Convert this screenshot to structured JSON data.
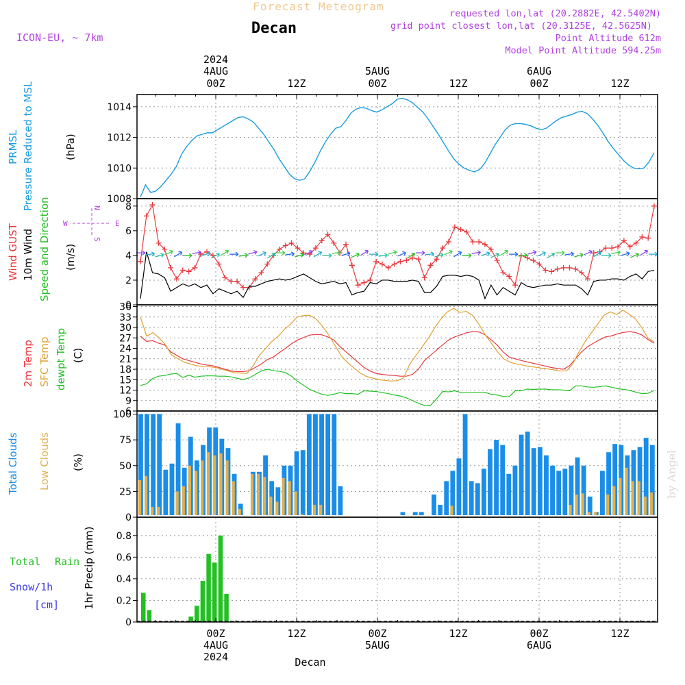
{
  "header": {
    "title": "Forecast Meteogram",
    "place": "Decan",
    "model": "ICON-EU, ~ 7km",
    "requested": "requested lon,lat (20.2882E, 42.5402N)",
    "grid": "grid point closest lon,lat (20.3125E, 42.5625N)",
    "altitude": "Point Altitude 612m",
    "model_altitude": "Model Point Altitude 594.25m",
    "footer": "Decan",
    "watermark": "by Angel"
  },
  "top_time_axis": {
    "labels": [
      "2024",
      "4AUG",
      "00Z",
      "12Z",
      "5AUG",
      "00Z",
      "12Z",
      "6AUG",
      "00Z",
      "12Z"
    ]
  },
  "bottom_time_axis": {
    "labels": [
      "00Z",
      "4AUG",
      "2024",
      "12Z",
      "00Z",
      "5AUG",
      "12Z",
      "00Z",
      "6AUG",
      "12Z"
    ]
  },
  "panels": {
    "pressure": {
      "label1": "PRMSL",
      "label2": "Pressure Reduced to MSL",
      "unit": "(hPa)"
    },
    "wind": {
      "label1": "Wind GUST",
      "label2": "10m Wind",
      "label3": "Speed and Direction",
      "unit": "(m/s)",
      "compass_n": "N",
      "compass_s": "S",
      "compass_w": "W",
      "compass_e": "E"
    },
    "temp": {
      "label1": "2m Temp",
      "label2": "SFC Temp",
      "label3": "dewpt Temp",
      "unit": "(C)"
    },
    "clouds": {
      "label1": "Total Clouds",
      "label2": "Low Clouds",
      "unit": "(%)"
    },
    "precip": {
      "label1": "Total",
      "label2": "Rain",
      "label3": "Snow/1h",
      "label4": "[cm]",
      "unit": "1hr Precip (mm)"
    }
  },
  "colors": {
    "pressure": "#1a9be0",
    "gust": "#e8383d",
    "wind": "#000000",
    "t2m": "#e8383d",
    "sfc": "#e0a030",
    "dewpt": "#22c022",
    "total_cloud": "#1a8de8",
    "low_cloud": "#e0b050",
    "rain": "#22c022",
    "title": "#f0c890",
    "meta": "#b040e0",
    "snow": "#3a3ae8"
  },
  "chart_data": [
    {
      "type": "line",
      "ylabel": "(hPa)",
      "ylim": [
        1008,
        1014.8
      ],
      "yticks": [
        "1008",
        "1010",
        "1012",
        "1014"
      ],
      "x_hours": [
        -21,
        -20,
        -19,
        -18,
        -17,
        -16,
        -15,
        -14,
        -13,
        -12,
        -11,
        -10,
        -9,
        -8,
        -7,
        -6,
        -5,
        -4,
        -3,
        -2,
        -1,
        0,
        1,
        2,
        3,
        4,
        5,
        6,
        7,
        8,
        9,
        10,
        11,
        12,
        13,
        14,
        15,
        16,
        17,
        18,
        19,
        20,
        21,
        22,
        23,
        24,
        25,
        26,
        27,
        28,
        29,
        30,
        31,
        32,
        33,
        34,
        35,
        36,
        37,
        38,
        39,
        40,
        41,
        42,
        43,
        44,
        45,
        46,
        47,
        48,
        49,
        50,
        51,
        52,
        53,
        54,
        55,
        56,
        57,
        58,
        59,
        60,
        61,
        62,
        63,
        64,
        65,
        66,
        67,
        68,
        69,
        70,
        71,
        72,
        73,
        74,
        75,
        76,
        77,
        78,
        79,
        80,
        81,
        82,
        83,
        84,
        85,
        86,
        87,
        88,
        89,
        90,
        91,
        92,
        93,
        94,
        95,
        96,
        97,
        98,
        99,
        100,
        101,
        102,
        103,
        104,
        105,
        106,
        107,
        108,
        109,
        110,
        111,
        112,
        113,
        114,
        115,
        116
      ],
      "series": [
        {
          "values": [
            1008.1,
            1008.9,
            1008.4,
            1008.5,
            1008.8,
            1009.2,
            1009.6,
            1010.1,
            1010.9,
            1011.4,
            1011.8,
            1012.1,
            1012.2,
            1012.3,
            1012.3,
            1012.5,
            1012.7,
            1012.9,
            1013.1,
            1013.3,
            1013.35,
            1013.2,
            1013.0,
            1012.6,
            1012.2,
            1011.7,
            1011.2,
            1010.6,
            1010.1,
            1009.6,
            1009.3,
            1009.2,
            1009.3,
            1009.8,
            1010.4,
            1011.1,
            1011.7,
            1012.2,
            1012.6,
            1012.7,
            1013.1,
            1013.6,
            1013.85,
            1013.95,
            1013.9,
            1013.75,
            1013.65,
            1013.8,
            1014.0,
            1014.2,
            1014.5,
            1014.55,
            1014.45,
            1014.25,
            1013.95,
            1013.65,
            1013.2,
            1012.7,
            1012.2,
            1011.65,
            1011.1,
            1010.6,
            1010.25,
            1010.0,
            1009.85,
            1009.75,
            1009.9,
            1010.3,
            1010.9,
            1011.5,
            1012.0,
            1012.5,
            1012.8,
            1012.9,
            1012.9,
            1012.85,
            1012.75,
            1012.6,
            1012.5,
            1012.6,
            1012.85,
            1013.1,
            1013.3,
            1013.4,
            1013.5,
            1013.65,
            1013.7,
            1013.55,
            1013.2,
            1012.8,
            1012.3,
            1011.75,
            1011.3,
            1010.9,
            1010.5,
            1010.2,
            1010.0,
            1009.95,
            1010.0,
            1010.4,
            1011.0
          ]
        }
      ]
    },
    {
      "type": "line",
      "ylabel": "(m/s)",
      "ylim": [
        0,
        8.6
      ],
      "yticks": [
        "0",
        "2",
        "4",
        "6",
        "8"
      ],
      "series": [
        {
          "name": "Wind GUST",
          "values": [
            3.5,
            7.2,
            8.1,
            5.0,
            4.5,
            3.0,
            2.1,
            2.8,
            2.7,
            3.0,
            4.1,
            4.3,
            4.0,
            3.3,
            2.2,
            1.9,
            1.9,
            1.4,
            1.4,
            2.1,
            2.6,
            3.3,
            4.0,
            4.5,
            4.8,
            5.0,
            4.6,
            4.2,
            4.1,
            4.6,
            5.2,
            5.7,
            5.0,
            4.2,
            4.9,
            3.2,
            1.6,
            1.8,
            2.0,
            3.5,
            3.3,
            3.0,
            3.3,
            3.5,
            3.6,
            3.8,
            3.7,
            2.2,
            3.2,
            3.7,
            4.6,
            5.1,
            6.3,
            6.1,
            5.9,
            5.1,
            5.1,
            4.9,
            4.5,
            3.6,
            2.6,
            2.3,
            1.6,
            4.0,
            3.8,
            3.6,
            3.3,
            2.8,
            2.7,
            2.9,
            3.0,
            3.0,
            2.9,
            2.6,
            2.1,
            4.2,
            4.3,
            4.6,
            4.6,
            4.7,
            5.2,
            4.7,
            5.0,
            5.5,
            5.4,
            8.0
          ]
        },
        {
          "name": "10m Wind",
          "values": [
            0.5,
            4.3,
            2.6,
            2.5,
            2.2,
            1.1,
            1.4,
            1.7,
            1.5,
            1.7,
            1.4,
            1.6,
            0.9,
            1.3,
            1.1,
            0.9,
            1.1,
            0.6,
            1.5,
            1.5,
            1.7,
            1.9,
            2.0,
            2.1,
            2.0,
            2.1,
            2.3,
            2.5,
            2.2,
            1.9,
            1.7,
            1.8,
            1.9,
            1.7,
            1.8,
            0.8,
            1.0,
            1.1,
            1.8,
            1.7,
            2.0,
            2.0,
            1.9,
            1.9,
            1.9,
            2.0,
            1.9,
            1.0,
            1.0,
            1.5,
            2.3,
            2.4,
            2.4,
            2.3,
            2.4,
            2.3,
            2.0,
            0.5,
            1.6,
            0.8,
            1.4,
            1.1,
            0.8,
            1.8,
            1.5,
            1.4,
            1.5,
            1.6,
            1.6,
            1.7,
            1.6,
            1.6,
            1.6,
            1.3,
            0.8,
            1.9,
            2.0,
            2.0,
            2.1,
            2.1,
            2.0,
            2.3,
            2.5,
            2.1,
            2.7,
            2.8
          ]
        }
      ]
    },
    {
      "type": "line",
      "ylabel": "(C)",
      "ylim": [
        6,
        36.5
      ],
      "yticks": [
        "6",
        "9",
        "12",
        "15",
        "18",
        "21",
        "24",
        "27",
        "30",
        "33",
        "36"
      ],
      "series": [
        {
          "name": "2m Temp",
          "values": [
            27.5,
            26.0,
            26.2,
            25.5,
            25.0,
            23.0,
            22.0,
            21.0,
            20.5,
            20.0,
            19.5,
            19.2,
            19.0,
            18.5,
            18.0,
            17.5,
            17.3,
            17.3,
            17.6,
            18.5,
            19.5,
            20.8,
            21.5,
            22.8,
            24.0,
            25.3,
            26.4,
            27.1,
            27.8,
            28.0,
            27.9,
            27.3,
            26.4,
            24.5,
            23.0,
            21.5,
            20.0,
            18.5,
            17.5,
            16.8,
            16.5,
            16.3,
            16.2,
            16.0,
            16.0,
            16.5,
            18.0,
            20.5,
            22.0,
            23.5,
            25.0,
            26.4,
            27.3,
            27.9,
            28.5,
            28.8,
            28.7,
            27.9,
            26.5,
            25.0,
            23.0,
            21.5,
            21.0,
            20.5,
            20.1,
            19.7,
            19.3,
            18.9,
            18.5,
            18.2,
            18.0,
            19.0,
            21.0,
            23.0,
            24.5,
            25.5,
            26.5,
            27.3,
            27.6,
            28.2,
            28.6,
            28.8,
            28.5,
            27.8,
            26.5,
            25.5
          ]
        },
        {
          "name": "SFC Temp",
          "values": [
            33.0,
            27.5,
            28.5,
            27.0,
            25.0,
            22.0,
            21.0,
            20.0,
            19.5,
            19.0,
            18.8,
            18.7,
            18.5,
            18.0,
            17.5,
            17.0,
            16.9,
            16.8,
            19.0,
            22.0,
            24.0,
            26.0,
            27.5,
            29.5,
            31.0,
            33.0,
            33.4,
            33.5,
            32.5,
            30.5,
            28.0,
            25.0,
            22.0,
            20.0,
            18.5,
            17.0,
            16.0,
            15.5,
            15.0,
            14.8,
            14.6,
            14.7,
            15.5,
            19.5,
            22.0,
            24.5,
            27.0,
            30.0,
            32.5,
            34.5,
            35.5,
            34.3,
            34.6,
            33.5,
            31.0,
            28.0,
            25.5,
            23.0,
            21.0,
            20.0,
            19.5,
            19.2,
            18.8,
            18.6,
            18.3,
            18.1,
            17.8,
            17.5,
            17.5,
            19.5,
            23.0,
            26.0,
            28.5,
            31.0,
            33.5,
            34.5,
            33.7,
            35.0,
            33.8,
            32.5,
            30.0,
            27.0,
            25.8
          ]
        },
        {
          "name": "dewpt Temp",
          "values": [
            13.3,
            13.8,
            15.3,
            16.0,
            16.2,
            16.6,
            16.8,
            15.6,
            16.3,
            15.7,
            16.0,
            16.1,
            16.1,
            16.0,
            16.0,
            15.8,
            15.4,
            15.0,
            15.5,
            16.5,
            17.5,
            18.0,
            17.6,
            17.4,
            17.0,
            16.0,
            14.5,
            13.4,
            12.2,
            11.5,
            10.8,
            10.5,
            10.8,
            11.3,
            11.0,
            11.0,
            10.8,
            11.8,
            11.7,
            11.6,
            11.3,
            11.0,
            10.6,
            10.3,
            9.8,
            9.0,
            8.2,
            7.6,
            7.6,
            9.5,
            11.6,
            11.5,
            11.8,
            11.3,
            11.2,
            11.3,
            11.4,
            11.4,
            10.8,
            10.6,
            10.2,
            10.1,
            11.8,
            11.8,
            12.3,
            12.2,
            12.3,
            12.3,
            12.1,
            12.1,
            12.0,
            11.8,
            13.2,
            13.2,
            12.9,
            12.8,
            13.0,
            13.2,
            12.8,
            12.4,
            12.2,
            11.9,
            11.4,
            11.0,
            11.1,
            11.9
          ]
        }
      ]
    },
    {
      "type": "bar",
      "ylabel": "(%)",
      "ylim": [
        0,
        103
      ],
      "yticks": [
        "0",
        "25",
        "50",
        "75",
        "100"
      ],
      "series": [
        {
          "name": "Total Clouds",
          "values": [
            100,
            100,
            100,
            100,
            46,
            52,
            91,
            48,
            78,
            55,
            70,
            87,
            87,
            76,
            67,
            42,
            13,
            0,
            44,
            44,
            60,
            35,
            29,
            50,
            50,
            64,
            65,
            100,
            100,
            100,
            100,
            100,
            30,
            0,
            0,
            0,
            0,
            0,
            0,
            0,
            1,
            2,
            5,
            0,
            5,
            5,
            0,
            22,
            12,
            35,
            45,
            57,
            100,
            35,
            33,
            47,
            66,
            75,
            70,
            42,
            50,
            80,
            83,
            67,
            68,
            60,
            50,
            45,
            47,
            50,
            58,
            50,
            20,
            5,
            45,
            63,
            71,
            70,
            60,
            65,
            68,
            77,
            70
          ]
        },
        {
          "name": "Low Clouds",
          "values": [
            36,
            40,
            10,
            10,
            0,
            2,
            25,
            30,
            50,
            45,
            55,
            63,
            60,
            62,
            55,
            35,
            8,
            0,
            42,
            42,
            39,
            20,
            15,
            38,
            35,
            25,
            3,
            0,
            12,
            12,
            0,
            0,
            0,
            0,
            0,
            0,
            0,
            0,
            0,
            0,
            0,
            0,
            0,
            0,
            0,
            0,
            0,
            0,
            0,
            0,
            11,
            0,
            0,
            0,
            0,
            0,
            0,
            0,
            0,
            0,
            0,
            0,
            0,
            0,
            0,
            0,
            0,
            0,
            0,
            12,
            22,
            23,
            5,
            5,
            0,
            22,
            30,
            38,
            48,
            35,
            35,
            20,
            24
          ]
        }
      ]
    },
    {
      "type": "bar",
      "ylabel": "1hr Precip (mm)",
      "ylim": [
        0,
        0.97
      ],
      "yticks": [
        "0",
        "0.2",
        "0.4",
        "0.6",
        "0.8"
      ],
      "series": [
        {
          "name": "Total Rain",
          "values": [
            0.27,
            0.11,
            0,
            0,
            0,
            0,
            0,
            0,
            0.05,
            0.15,
            0.38,
            0.63,
            0.55,
            0.8,
            0.26
          ]
        }
      ]
    }
  ]
}
